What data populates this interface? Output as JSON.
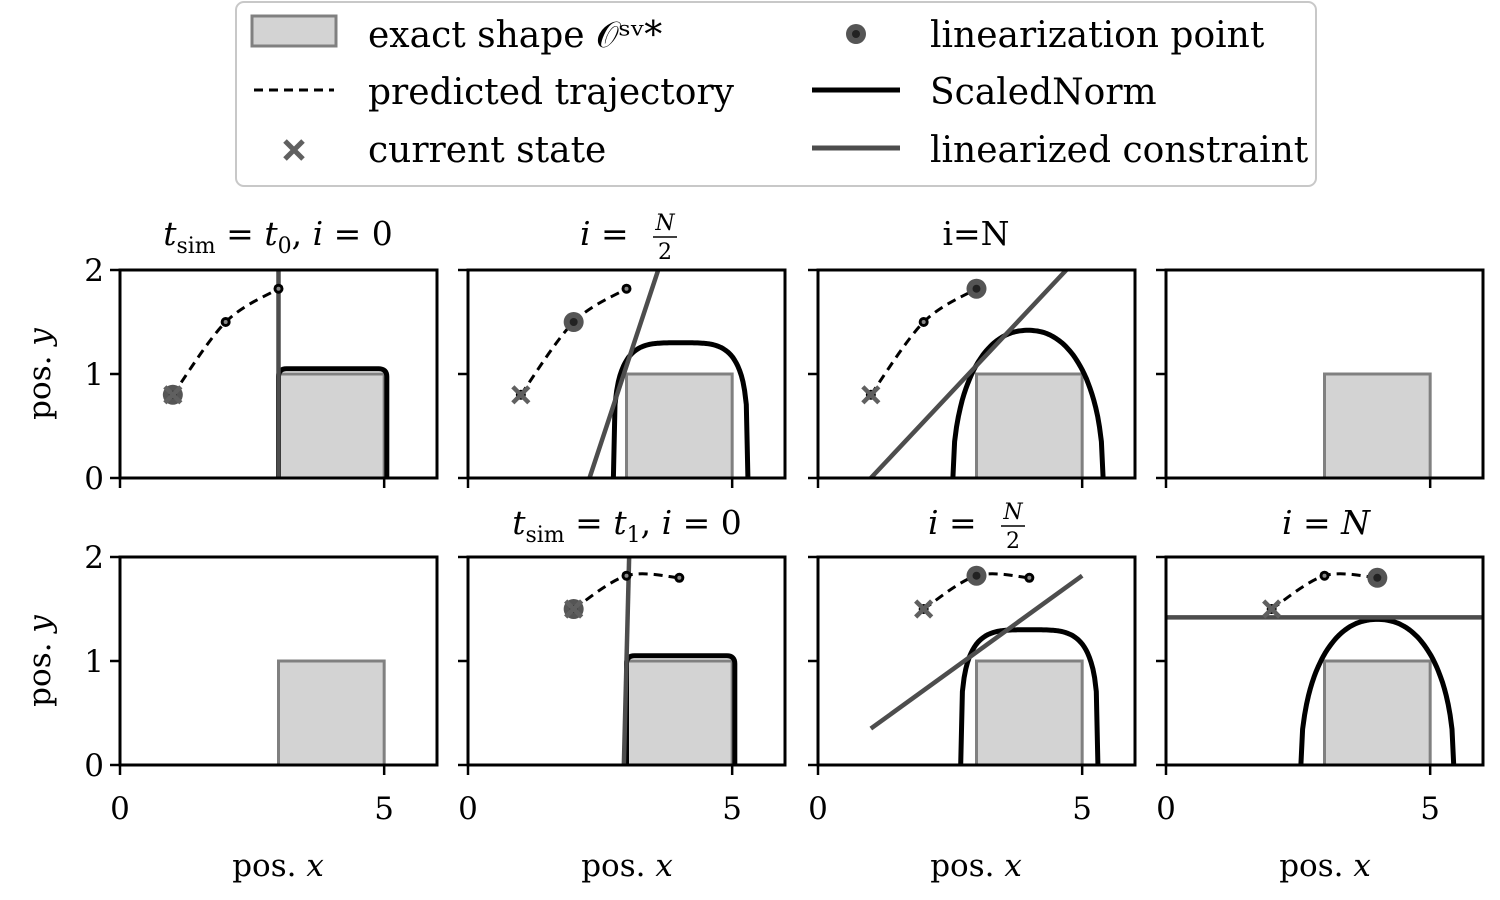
{
  "legend": {
    "entries": [
      {
        "key": "exact_shape",
        "label": "exact shape 𝒪ˢᵛ*"
      },
      {
        "key": "trajectory",
        "label": "predicted trajectory"
      },
      {
        "key": "current_state",
        "label": "current state"
      },
      {
        "key": "lin_point",
        "label": "linearization point"
      },
      {
        "key": "scalednorm",
        "label": "ScaledNorm"
      },
      {
        "key": "lin_constraint",
        "label": "linearized constraint"
      }
    ]
  },
  "colors": {
    "obstacle_fill": "#d3d3d3",
    "obstacle_edge": "#808080",
    "trajectory": "#000000",
    "current_state": "#606060",
    "lin_point": "#404040",
    "scalednorm": "#000000",
    "lin_constraint": "#4d4d4d"
  },
  "axes": {
    "xlabel": "pos. x",
    "ylabel": "pos. y",
    "xlim": [
      0,
      6
    ],
    "ylim": [
      0,
      2
    ],
    "xticks": [
      "0",
      "5"
    ],
    "yticks": [
      "0",
      "1",
      "2"
    ]
  },
  "chart_data": [
    {
      "type": "line",
      "row": 0,
      "col": 0,
      "title": "t_sim = t_0, i = 0",
      "obstacle": {
        "x": [
          3,
          5
        ],
        "y": [
          0,
          1
        ]
      },
      "trajectory": {
        "x": [
          1,
          2,
          3
        ],
        "y": [
          0.8,
          1.5,
          1.82
        ]
      },
      "current_state": {
        "x": 1,
        "y": 0.8
      },
      "linearization_point": {
        "x": 1,
        "y": 0.8
      },
      "scalednorm": "inflated rectangle, height 1.05, x 3 to 5.05",
      "linearized_constraint": {
        "p1": [
          3,
          0
        ],
        "p2": [
          3,
          2
        ]
      }
    },
    {
      "type": "line",
      "row": 0,
      "col": 1,
      "title": "i = N/2",
      "obstacle": {
        "x": [
          3,
          5
        ],
        "y": [
          0,
          1
        ]
      },
      "trajectory": {
        "x": [
          1,
          2,
          3
        ],
        "y": [
          0.8,
          1.5,
          1.82
        ]
      },
      "current_state": {
        "x": 1,
        "y": 0.8
      },
      "linearization_point": {
        "x": 2,
        "y": 1.5
      },
      "scalednorm": "rounded cap, height 1.3, x 2.75 to 5.3",
      "linearized_constraint": {
        "p1": [
          2.3,
          0
        ],
        "p2": [
          3.6,
          2
        ]
      }
    },
    {
      "type": "line",
      "row": 0,
      "col": 2,
      "title": "i=N",
      "obstacle": {
        "x": [
          3,
          5
        ],
        "y": [
          0,
          1
        ]
      },
      "trajectory": {
        "x": [
          1,
          2,
          3
        ],
        "y": [
          0.8,
          1.5,
          1.82
        ]
      },
      "current_state": {
        "x": 1,
        "y": 0.8
      },
      "linearization_point": {
        "x": 3,
        "y": 1.82
      },
      "scalednorm": "arch, height 1.42, x 2.55 to 5.4",
      "linearized_constraint": {
        "p1": [
          1,
          0
        ],
        "p2": [
          4.7,
          2
        ]
      }
    },
    {
      "type": "line",
      "row": 0,
      "col": 3,
      "title": "",
      "obstacle": {
        "x": [
          3,
          5
        ],
        "y": [
          0,
          1
        ]
      }
    },
    {
      "type": "line",
      "row": 1,
      "col": 0,
      "title": "",
      "obstacle": {
        "x": [
          3,
          5
        ],
        "y": [
          0,
          1
        ]
      }
    },
    {
      "type": "line",
      "row": 1,
      "col": 1,
      "title": "t_sim = t_1, i = 0",
      "obstacle": {
        "x": [
          3,
          5
        ],
        "y": [
          0,
          1
        ]
      },
      "trajectory": {
        "x": [
          2,
          3,
          4
        ],
        "y": [
          1.5,
          1.82,
          1.8
        ]
      },
      "current_state": {
        "x": 2,
        "y": 1.5
      },
      "linearization_point": {
        "x": 2,
        "y": 1.5
      },
      "scalednorm": "inflated rectangle, height 1.05, x 3 to 5.05",
      "linearized_constraint": {
        "p1": [
          2.95,
          0
        ],
        "p2": [
          3.05,
          2
        ]
      }
    },
    {
      "type": "line",
      "row": 1,
      "col": 2,
      "title": "i = N/2",
      "obstacle": {
        "x": [
          3,
          5
        ],
        "y": [
          0,
          1
        ]
      },
      "trajectory": {
        "x": [
          2,
          3,
          4
        ],
        "y": [
          1.5,
          1.82,
          1.8
        ]
      },
      "current_state": {
        "x": 2,
        "y": 1.5
      },
      "linearization_point": {
        "x": 3,
        "y": 1.82
      },
      "scalednorm": "rounded cap, height 1.3, x 2.7 to 5.3",
      "linearized_constraint": {
        "p1": [
          1,
          0.35
        ],
        "p2": [
          5,
          1.82
        ]
      }
    },
    {
      "type": "line",
      "row": 1,
      "col": 3,
      "title": "i = N",
      "obstacle": {
        "x": [
          3,
          5
        ],
        "y": [
          0,
          1
        ]
      },
      "trajectory": {
        "x": [
          2,
          3,
          4
        ],
        "y": [
          1.5,
          1.82,
          1.8
        ]
      },
      "current_state": {
        "x": 2,
        "y": 1.5
      },
      "linearization_point": {
        "x": 4,
        "y": 1.8
      },
      "scalednorm": "arch, height 1.4, x 2.55 to 5.45",
      "linearized_constraint": {
        "p1": [
          0,
          1.42
        ],
        "p2": [
          6,
          1.42
        ]
      }
    }
  ]
}
